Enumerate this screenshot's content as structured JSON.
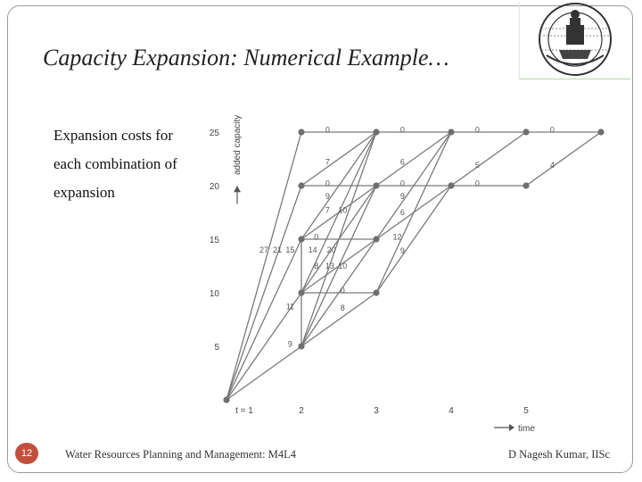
{
  "slide": {
    "title": "Capacity Expansion: Numerical Example…",
    "body_lines": [
      "Expansion costs for",
      "each combination of",
      "expansion"
    ],
    "slide_number": "12",
    "footer_left": "Water Resources Planning and Management: M4L4",
    "footer_right": "D Nagesh Kumar, IISc"
  },
  "logo": {
    "name": "iisc-logo"
  },
  "diagram": {
    "y_axis_label": "added capacity",
    "x_axis_label": "time",
    "y_ticks": [
      5,
      10,
      15,
      20,
      25
    ],
    "x_ticks": [
      "t = 1",
      "2",
      "3",
      "4",
      "5"
    ],
    "colors": {
      "line": "#7a7a7a",
      "node": "#6f6f6f",
      "text": "#555555"
    },
    "nodes": [
      {
        "t": 1,
        "c": 0
      },
      {
        "t": 2,
        "c": 5
      },
      {
        "t": 2,
        "c": 10
      },
      {
        "t": 2,
        "c": 15
      },
      {
        "t": 2,
        "c": 20
      },
      {
        "t": 2,
        "c": 25
      },
      {
        "t": 3,
        "c": 10
      },
      {
        "t": 3,
        "c": 15
      },
      {
        "t": 3,
        "c": 20
      },
      {
        "t": 3,
        "c": 25
      },
      {
        "t": 4,
        "c": 20
      },
      {
        "t": 4,
        "c": 25
      },
      {
        "t": 5,
        "c": 20
      },
      {
        "t": 5,
        "c": 25
      },
      {
        "t": 6,
        "c": 25
      }
    ],
    "edges": [
      [
        1,
        0,
        2,
        5
      ],
      [
        1,
        0,
        2,
        10
      ],
      [
        1,
        0,
        2,
        15
      ],
      [
        1,
        0,
        2,
        20
      ],
      [
        1,
        0,
        2,
        25
      ],
      [
        2,
        5,
        2,
        10
      ],
      [
        2,
        10,
        2,
        15
      ],
      [
        2,
        5,
        3,
        10
      ],
      [
        2,
        5,
        3,
        15
      ],
      [
        2,
        5,
        3,
        20
      ],
      [
        2,
        5,
        3,
        25
      ],
      [
        2,
        10,
        3,
        10
      ],
      [
        2,
        10,
        3,
        15
      ],
      [
        2,
        10,
        3,
        20
      ],
      [
        2,
        10,
        3,
        25
      ],
      [
        2,
        15,
        3,
        15
      ],
      [
        2,
        15,
        3,
        20
      ],
      [
        2,
        15,
        3,
        25
      ],
      [
        2,
        20,
        3,
        20
      ],
      [
        2,
        20,
        3,
        25
      ],
      [
        2,
        25,
        3,
        25
      ],
      [
        3,
        10,
        4,
        20
      ],
      [
        3,
        10,
        4,
        25
      ],
      [
        3,
        15,
        4,
        20
      ],
      [
        3,
        15,
        4,
        25
      ],
      [
        3,
        20,
        4,
        20
      ],
      [
        3,
        20,
        4,
        25
      ],
      [
        3,
        25,
        4,
        25
      ],
      [
        4,
        20,
        5,
        20
      ],
      [
        4,
        20,
        5,
        25
      ],
      [
        4,
        25,
        5,
        25
      ],
      [
        5,
        20,
        6,
        25
      ],
      [
        5,
        25,
        6,
        25
      ]
    ],
    "cost_labels": [
      {
        "text": "27",
        "t": 1.5,
        "c": 14.0
      },
      {
        "text": "21",
        "t": 1.68,
        "c": 14.0
      },
      {
        "text": "15",
        "t": 1.85,
        "c": 14.0
      },
      {
        "text": "11",
        "t": 1.85,
        "c": 8.7
      },
      {
        "text": "9",
        "t": 1.85,
        "c": 5.2
      },
      {
        "text": "0",
        "t": 2.35,
        "c": 25.2
      },
      {
        "text": "7",
        "t": 2.35,
        "c": 22.2
      },
      {
        "text": "0",
        "t": 2.35,
        "c": 20.2
      },
      {
        "text": "9",
        "t": 2.35,
        "c": 19.0
      },
      {
        "text": "7",
        "t": 2.35,
        "c": 17.7
      },
      {
        "text": "10",
        "t": 2.55,
        "c": 17.7
      },
      {
        "text": "0",
        "t": 2.2,
        "c": 15.2
      },
      {
        "text": "14",
        "t": 2.15,
        "c": 14.0
      },
      {
        "text": "20",
        "t": 2.4,
        "c": 14.0
      },
      {
        "text": "8",
        "t": 2.2,
        "c": 12.5
      },
      {
        "text": "13",
        "t": 2.38,
        "c": 12.5
      },
      {
        "text": "10",
        "t": 2.55,
        "c": 12.5
      },
      {
        "text": "0",
        "t": 2.55,
        "c": 10.2
      },
      {
        "text": "8",
        "t": 2.55,
        "c": 8.6
      },
      {
        "text": "0",
        "t": 3.35,
        "c": 25.2
      },
      {
        "text": "6",
        "t": 3.35,
        "c": 22.2
      },
      {
        "text": "0",
        "t": 3.35,
        "c": 20.2
      },
      {
        "text": "9",
        "t": 3.35,
        "c": 19.0
      },
      {
        "text": "6",
        "t": 3.35,
        "c": 17.5
      },
      {
        "text": "12",
        "t": 3.28,
        "c": 15.2
      },
      {
        "text": "9",
        "t": 3.35,
        "c": 13.9
      },
      {
        "text": "0",
        "t": 4.35,
        "c": 25.2
      },
      {
        "text": "5",
        "t": 4.35,
        "c": 21.9
      },
      {
        "text": "0",
        "t": 4.35,
        "c": 20.2
      },
      {
        "text": "0",
        "t": 5.35,
        "c": 25.2
      },
      {
        "text": "4",
        "t": 5.35,
        "c": 21.9
      }
    ]
  }
}
